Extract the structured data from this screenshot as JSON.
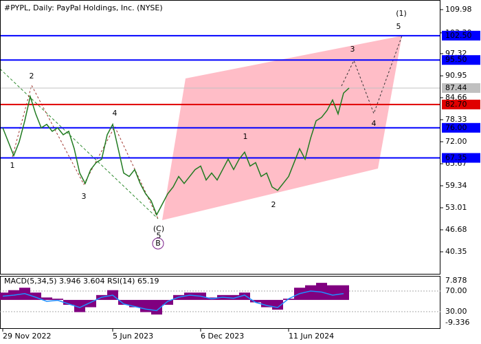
{
  "chart_data": {
    "type": "line",
    "title": "#PYPL, Daily:  PayPal Holdings, Inc. (NYSE)",
    "categories": [
      "29 Nov 2022",
      null,
      null,
      null,
      null,
      null,
      null,
      null,
      null,
      null,
      null,
      null,
      null,
      null,
      null,
      null,
      null,
      null,
      null,
      null,
      "5 Jun 2023",
      null,
      null,
      null,
      null,
      null,
      null,
      null,
      null,
      null,
      null,
      null,
      null,
      null,
      null,
      null,
      "6 Dec 2023",
      null,
      null,
      null,
      null,
      null,
      null,
      null,
      null,
      null,
      null,
      null,
      null,
      null,
      null,
      null,
      "11 Jun 2024",
      null,
      null,
      null,
      null,
      null,
      null,
      null,
      null,
      null,
      null,
      null
    ],
    "values": [
      76,
      72,
      68,
      72,
      78,
      85,
      80,
      76,
      77,
      75,
      76,
      74,
      75,
      70,
      63,
      60,
      64,
      66,
      67,
      74,
      77,
      70,
      63,
      62,
      64,
      60,
      57,
      55,
      51,
      54,
      57,
      59,
      62,
      60,
      62,
      64,
      65,
      61,
      63,
      61,
      64,
      67,
      64,
      67,
      69,
      65,
      66,
      62,
      63,
      59,
      58,
      60,
      62,
      66,
      70,
      67,
      73,
      78,
      79,
      81,
      84,
      80,
      86,
      87.44
    ],
    "color": "#1f7a1f",
    "ylim": [
      34.02,
      112.75
    ],
    "yticks": [
      {
        "value": 109.98,
        "label": "109.98"
      },
      {
        "value": 103.3,
        "label": "103.30"
      },
      {
        "value": 97.32,
        "label": "97.32"
      },
      {
        "value": 90.95,
        "label": "90.95"
      },
      {
        "value": 84.66,
        "label": "84.66"
      },
      {
        "value": 78.33,
        "label": "78.33"
      },
      {
        "value": 72,
        "label": "72.00"
      },
      {
        "value": 65.67,
        "label": "65.67"
      },
      {
        "value": 59.34,
        "label": "59.34"
      },
      {
        "value": 53.01,
        "label": "53.01"
      },
      {
        "value": 46.68,
        "label": "46.68"
      },
      {
        "value": 40.35,
        "label": "40.35"
      }
    ],
    "levels": [
      {
        "value": 102.5,
        "label": "102.50",
        "color": "#0000ff"
      },
      {
        "value": 95.5,
        "label": "95.50",
        "color": "#0000ff"
      },
      {
        "value": 87.44,
        "label": "87.44",
        "color": "#c0c0c0"
      },
      {
        "value": 82.7,
        "label": "82.70",
        "color": "#e00000"
      },
      {
        "value": 76,
        "label": "76.00",
        "color": "#0000ff"
      },
      {
        "value": 67.35,
        "label": "67.35",
        "color": "#0000ff"
      }
    ],
    "wave_labels": [
      {
        "text": "1",
        "color": "#a0342d"
      },
      {
        "text": "2",
        "color": "#a0342d"
      },
      {
        "text": "3",
        "color": "#a0342d"
      },
      {
        "text": "4",
        "color": "#a0342d"
      },
      {
        "text": "5",
        "color": "#a0342d"
      },
      {
        "text": "(C)",
        "color": "#2e8b2e"
      },
      {
        "text": "B",
        "color": "#7a1f8a"
      },
      {
        "text": "1",
        "color": "#a0342d"
      },
      {
        "text": "2",
        "color": "#a0342d"
      },
      {
        "text": "3",
        "color": "#a0342d"
      },
      {
        "text": "4",
        "color": "#a0342d"
      },
      {
        "text": "5",
        "color": "#a0342d"
      },
      {
        "text": "(1)",
        "color": "#2e8b2e"
      }
    ],
    "indicator": {
      "title": "MACD(5,34,5) 3.946 3.604 RSI(14) 65.19",
      "macd": {
        "color": "#800080",
        "values": [
          3,
          4,
          5,
          3,
          1,
          0.5,
          -2,
          -5,
          -3,
          2,
          4,
          -2,
          -3,
          -5,
          -6,
          -2,
          2,
          3,
          3,
          1,
          2,
          2,
          3,
          -1,
          -3,
          -4,
          0.5,
          5,
          6,
          7,
          6,
          6
        ]
      },
      "rsi": {
        "color": "#1e90ff",
        "values": [
          60,
          62,
          65,
          58,
          50,
          52,
          45,
          38,
          48,
          58,
          62,
          45,
          40,
          35,
          32,
          50,
          58,
          62,
          60,
          55,
          58,
          56,
          62,
          48,
          42,
          38,
          55,
          65,
          70,
          68,
          62,
          65
        ]
      },
      "macd_lim": [
        -9.336,
        7.878
      ],
      "macd_ticks": [
        7.878,
        -9.336
      ],
      "rsi_ticks": [
        {
          "value": 70,
          "label": "70.00"
        },
        {
          "value": 30,
          "label": "30.00"
        }
      ]
    }
  }
}
